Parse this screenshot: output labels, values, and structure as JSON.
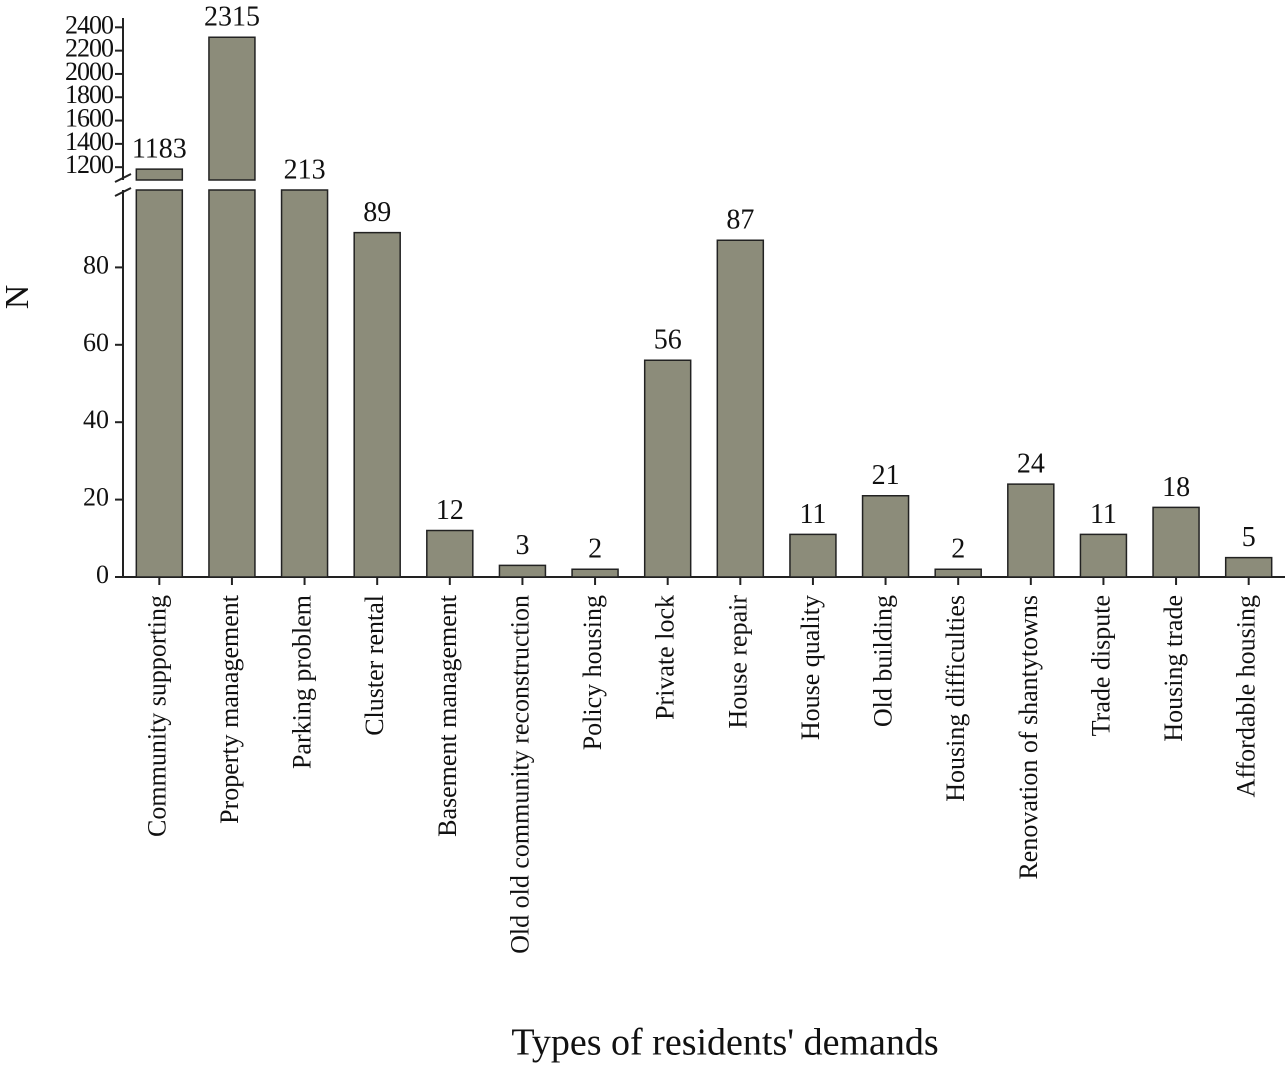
{
  "chart_data": {
    "type": "bar",
    "x_label": "Types of residents' demands",
    "y_label": "N",
    "categories": [
      "Community supporting",
      "Property management",
      "Parking problem",
      "Cluster rental",
      "Basement management",
      "Old old community reconstruction",
      "Policy housing",
      "Private lock",
      "House repair",
      "House quality",
      "Old building",
      "Housing difficulties",
      "Renovation of shantytowns",
      "Trade dispute",
      "Housing trade",
      "Affordable housing"
    ],
    "values": [
      1183,
      2315,
      213,
      89,
      12,
      3,
      2,
      56,
      87,
      11,
      21,
      2,
      24,
      11,
      18,
      5
    ],
    "color": "#8c8c7a",
    "ylim": [
      0,
      100
    ],
    "yticks": [
      0,
      20,
      40,
      60,
      80
    ],
    "upper_ylim": [
      1090,
      2480
    ],
    "upper_yticks": [
      1200,
      1400,
      1600,
      1800,
      2000,
      2200,
      2400
    ],
    "axis_break": true
  }
}
